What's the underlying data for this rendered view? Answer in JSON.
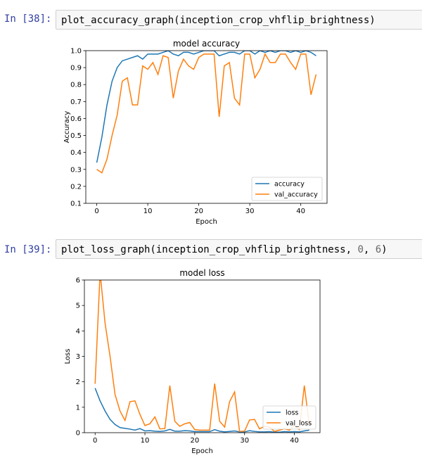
{
  "cells": [
    {
      "prompt": "In [38]:",
      "code": "plot_accuracy_graph(inception_crop_vhflip_brightness)",
      "code_args": ""
    },
    {
      "prompt": "In [39]:",
      "code": "plot_loss_graph(inception_crop_vhflip_brightness, ",
      "code_num1": "0",
      "code_sep": ", ",
      "code_num2": "6",
      "code_end": ")"
    }
  ],
  "colors": {
    "series1": "#1f77b4",
    "series2": "#ff7f0e",
    "prompt": "#303f9f"
  },
  "chart_data": [
    {
      "type": "line",
      "title": "model accuracy",
      "xlabel": "Epoch",
      "ylabel": "Accuracy",
      "xlim": [
        -2.15,
        45.15
      ],
      "ylim": [
        0.1,
        1.0
      ],
      "xticks": [
        "0",
        "10",
        "20",
        "30",
        "40"
      ],
      "xtick_values": [
        0,
        10,
        20,
        30,
        40
      ],
      "yticks": [
        "0.1",
        "0.2",
        "0.3",
        "0.4",
        "0.5",
        "0.6",
        "0.7",
        "0.8",
        "0.9",
        "1.0"
      ],
      "ytick_values": [
        0.1,
        0.2,
        0.3,
        0.4,
        0.5,
        0.6,
        0.7,
        0.8,
        0.9,
        1.0
      ],
      "legend_position": "lower-right",
      "series": [
        {
          "name": "accuracy",
          "color": "#1f77b4",
          "values": [
            0.34,
            0.49,
            0.68,
            0.82,
            0.9,
            0.94,
            0.95,
            0.96,
            0.97,
            0.95,
            0.98,
            0.98,
            0.98,
            0.99,
            1.0,
            0.98,
            0.97,
            0.99,
            0.99,
            0.98,
            0.99,
            1.0,
            1.0,
            1.0,
            0.97,
            0.98,
            0.99,
            0.99,
            0.98,
            1.0,
            1.0,
            0.98,
            1.0,
            0.99,
            1.0,
            0.99,
            1.0,
            1.0,
            0.99,
            1.0,
            0.99,
            1.0,
            0.99,
            0.97
          ]
        },
        {
          "name": "val_accuracy",
          "color": "#ff7f0e",
          "values": [
            0.3,
            0.28,
            0.36,
            0.5,
            0.62,
            0.82,
            0.84,
            0.68,
            0.68,
            0.91,
            0.89,
            0.93,
            0.86,
            0.97,
            0.96,
            0.72,
            0.88,
            0.95,
            0.91,
            0.89,
            0.96,
            0.98,
            0.98,
            0.98,
            0.61,
            0.91,
            0.93,
            0.72,
            0.68,
            0.98,
            0.98,
            0.84,
            0.89,
            0.98,
            0.93,
            0.93,
            0.98,
            0.98,
            0.93,
            0.89,
            0.98,
            0.98,
            0.74,
            0.86
          ]
        }
      ]
    },
    {
      "type": "line",
      "title": "model loss",
      "xlabel": "Epoch",
      "ylabel": "Loss",
      "xlim": [
        -2.15,
        45.15
      ],
      "ylim": [
        0,
        6
      ],
      "xticks": [
        "0",
        "10",
        "20",
        "30",
        "40"
      ],
      "xtick_values": [
        0,
        10,
        20,
        30,
        40
      ],
      "yticks": [
        "0",
        "1",
        "2",
        "3",
        "4",
        "5",
        "6"
      ],
      "ytick_values": [
        0,
        1,
        2,
        3,
        4,
        5,
        6
      ],
      "legend_position": "lower-right",
      "series": [
        {
          "name": "loss",
          "color": "#1f77b4",
          "values": [
            1.75,
            1.25,
            0.85,
            0.52,
            0.32,
            0.2,
            0.17,
            0.14,
            0.1,
            0.16,
            0.07,
            0.08,
            0.06,
            0.05,
            0.07,
            0.13,
            0.06,
            0.06,
            0.08,
            0.07,
            0.04,
            0.04,
            0.04,
            0.04,
            0.12,
            0.06,
            0.03,
            0.05,
            0.07,
            0.03,
            0.03,
            0.08,
            0.05,
            0.03,
            0.03,
            0.04,
            0.02,
            0.02,
            0.04,
            0.03,
            0.04,
            0.03,
            0.07,
            0.1
          ]
        },
        {
          "name": "val_loss",
          "color": "#ff7f0e",
          "values": [
            1.92,
            6.3,
            4.3,
            3.0,
            1.5,
            0.85,
            0.48,
            1.22,
            1.25,
            0.72,
            0.28,
            0.35,
            0.62,
            0.15,
            0.16,
            1.85,
            0.45,
            0.25,
            0.35,
            0.4,
            0.12,
            0.1,
            0.1,
            0.1,
            1.93,
            0.45,
            0.22,
            1.22,
            1.6,
            0.05,
            0.06,
            0.5,
            0.52,
            0.15,
            0.25,
            0.22,
            0.05,
            0.1,
            0.15,
            0.1,
            0.28,
            0.12,
            1.85,
            0.3
          ]
        }
      ]
    }
  ]
}
